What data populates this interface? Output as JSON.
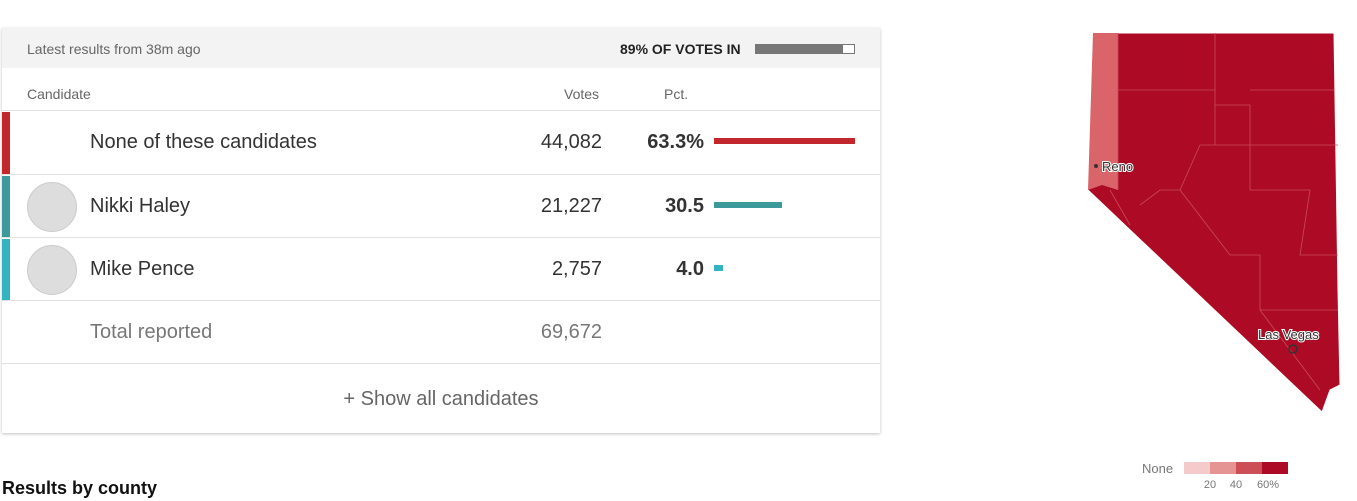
{
  "header": {
    "updated": "Latest results from 38m ago",
    "votes_in": {
      "value": 89,
      "label": "89% OF VOTES IN"
    }
  },
  "columns": {
    "candidate": "Candidate",
    "votes": "Votes",
    "pct": "Pct."
  },
  "rows": [
    {
      "name": "None of these candidates",
      "votes": "44,082",
      "pct": {
        "value": 63.3,
        "label": "63.3%"
      },
      "color": "#c1272d",
      "bar_color": "#c1272d"
    },
    {
      "name": "Nikki Haley",
      "votes": "21,227",
      "pct": {
        "value": 30.5,
        "label": "30.5"
      },
      "color": "#3c9a9a",
      "bar_color": "#3c9a9a"
    },
    {
      "name": "Mike Pence",
      "votes": "2,757",
      "pct": {
        "value": 4.0,
        "label": "4.0"
      },
      "color": "#34b4c0",
      "bar_color": "#34b4c0"
    }
  ],
  "total": {
    "label": "Total reported",
    "votes": "69,672"
  },
  "show_all": "+ Show all candidates",
  "section_title": "Results by county",
  "map": {
    "cities": [
      "Reno",
      "Las Vegas"
    ],
    "legend": {
      "none": "None",
      "ticks": [
        "20",
        "40",
        "60%"
      ]
    }
  }
}
